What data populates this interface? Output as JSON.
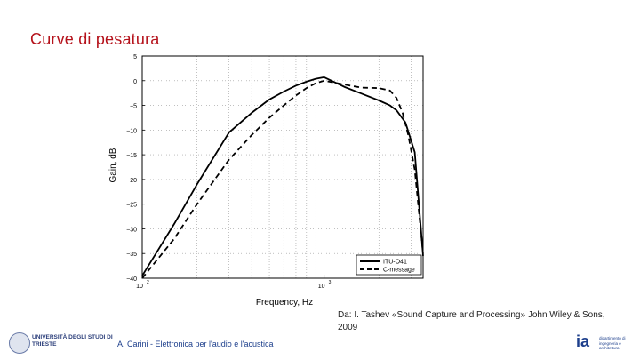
{
  "slide": {
    "title": "Curve di pesatura",
    "source_note": "Da: I. Tashev «Sound Capture and Processing» John Wiley & Sons, 2009",
    "footer": "A. Carini - Elettronica per l'audio e l'acustica",
    "logo_left_text": "UNIVERSITÀ DEGLI STUDI DI TRIESTE",
    "logo_right_mark": "ia",
    "logo_right_text": "dipartimento di ingegneria e architettura"
  },
  "chart_data": {
    "type": "line",
    "xscale": "log",
    "xlim": [
      100,
      3500
    ],
    "ylim": [
      -40,
      5
    ],
    "xlabel": "Frequency, Hz",
    "ylabel": "Gain, dB",
    "grid": true,
    "legend_position": "bottom-right",
    "x_ticks": [
      {
        "value": 100,
        "base": "10",
        "exp": "2"
      },
      {
        "value": 1000,
        "base": "10",
        "exp": "3"
      }
    ],
    "y_ticks": [
      5,
      0,
      -5,
      -10,
      -15,
      -20,
      -25,
      -30,
      -35,
      -40
    ],
    "y_tick_labels": [
      "5",
      "0",
      "−5",
      "−10",
      "−15",
      "−20",
      "−25",
      "−30",
      "−35",
      "−40"
    ],
    "series": [
      {
        "name": "ITU-O41",
        "dash": "solid",
        "x": [
          100,
          150,
          200,
          300,
          400,
          500,
          600,
          700,
          800,
          900,
          1000,
          1300,
          1600,
          2000,
          2300,
          2500,
          2800,
          3150,
          3500
        ],
        "y": [
          -39.5,
          -29,
          -21,
          -10.5,
          -6.5,
          -3.8,
          -2.2,
          -1.0,
          -0.2,
          0.4,
          0.7,
          -1.3,
          -2.6,
          -4.0,
          -5.0,
          -6.0,
          -8.5,
          -14.5,
          -35.5
        ]
      },
      {
        "name": "C-message",
        "dash": "dashed",
        "x": [
          100,
          150,
          200,
          300,
          400,
          500,
          600,
          700,
          800,
          900,
          1000,
          1300,
          1600,
          2000,
          2300,
          2500,
          2700,
          2900,
          3150,
          3500
        ],
        "y": [
          -40,
          -32,
          -25,
          -16,
          -11,
          -7.5,
          -5,
          -3,
          -1.5,
          -0.5,
          0,
          -0.8,
          -1.4,
          -1.5,
          -2.0,
          -3.5,
          -6.5,
          -11,
          -18,
          -35
        ]
      }
    ]
  }
}
